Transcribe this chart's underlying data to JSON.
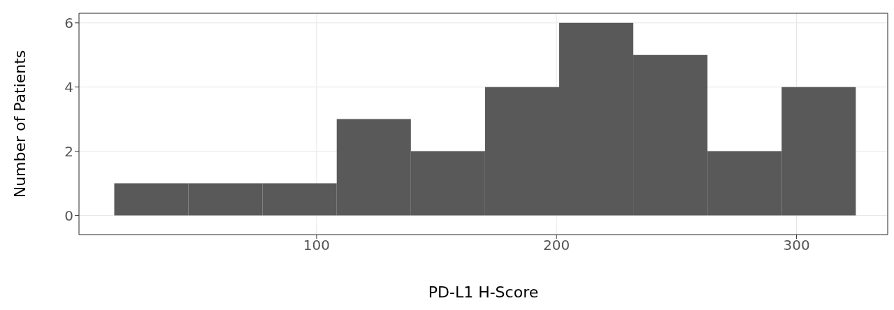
{
  "chart_data": {
    "type": "histogram",
    "xlabel": "PD-L1 H-Score",
    "ylabel": "Number of Patients",
    "bins": [
      15.7,
      46.6,
      77.5,
      108.4,
      139.3,
      170.2,
      201.1,
      232,
      262.9,
      293.8,
      324.7
    ],
    "values": [
      1,
      1,
      1,
      3,
      2,
      4,
      6,
      5,
      2,
      4
    ],
    "color": "#595959",
    "xlim": [
      1,
      338
    ],
    "xticks": [
      100,
      200,
      300
    ],
    "ylim": [
      -0.6,
      6.3
    ],
    "yticks": [
      0,
      2,
      4,
      6
    ],
    "grid": true
  }
}
